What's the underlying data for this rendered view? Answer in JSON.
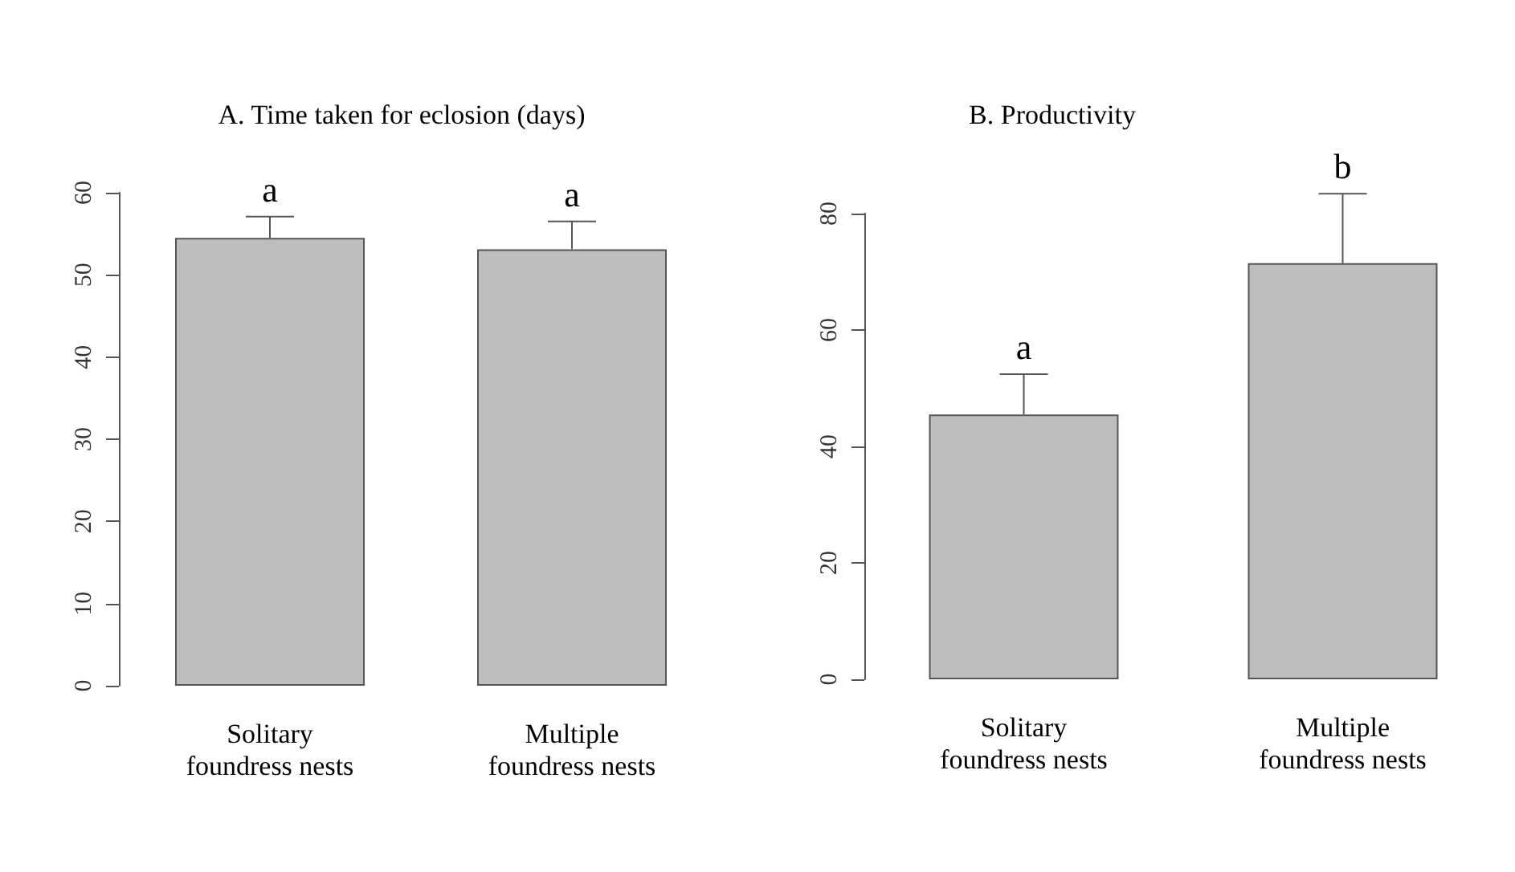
{
  "chart_data": [
    {
      "type": "bar",
      "title": "A. Time taken for eclosion (days)",
      "categories": [
        "Solitary\nfoundress nests",
        "Multiple\nfoundress nests"
      ],
      "values": [
        54.5,
        53.1
      ],
      "errors": [
        [
          54.5,
          57.1
        ],
        [
          53.1,
          56.5
        ]
      ],
      "color": "#bebebe",
      "ylim": [
        0,
        60
      ],
      "yticks": [
        0,
        10,
        20,
        30,
        40,
        50,
        60
      ],
      "annotations": [
        {
          "text": "a",
          "x": "Solitary\nfoundress nests",
          "y": 57.1
        },
        {
          "text": "a",
          "x": "Multiple\nfoundress nests",
          "y": 56.5
        }
      ]
    },
    {
      "type": "bar",
      "title": "B. Productivity",
      "categories": [
        "Solitary\nfoundress nests",
        "Multiple\nfoundress nests"
      ],
      "values": [
        45.5,
        71.5
      ],
      "errors": [
        [
          45.5,
          52.4
        ],
        [
          71.5,
          83.4
        ]
      ],
      "color": "#bebebe",
      "ylim": [
        0,
        80
      ],
      "yticks": [
        0,
        20,
        40,
        60,
        80
      ],
      "annotations": [
        {
          "text": "a",
          "x": "Solitary\nfoundress nests",
          "y": 52.4
        },
        {
          "text": "b",
          "x": "Multiple\nfoundress nests",
          "y": 83.4
        }
      ]
    }
  ]
}
